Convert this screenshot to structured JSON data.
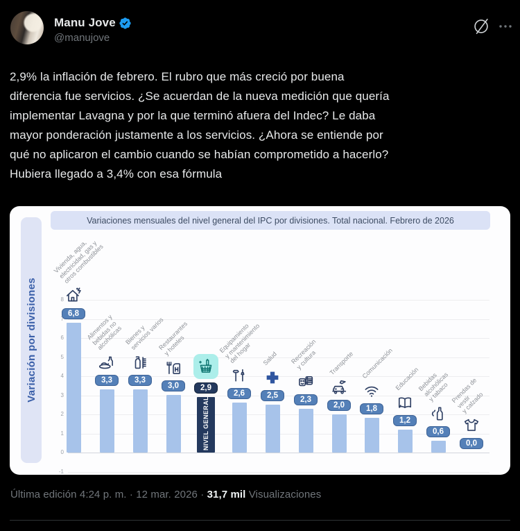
{
  "header": {
    "display_name": "Manu Jove",
    "handle": "@manujove",
    "verified_icon": "verified-badge-icon",
    "grok_icon": "grok-slash-icon",
    "more_icon": "more-dots-icon"
  },
  "tweet": {
    "text": "2,9% la inflación de febrero. El rubro que más creció por buena\ndiferencia fue servicios. ¿Se acuerdan de la nueva medición que quería\nimplementar Lavagna y por la que terminó afuera del Indec? Le daba\nmayor ponderación justamente a los servicios. ¿Ahora se entiende por\nqué no aplicaron el cambio cuando se habían comprometido a hacerlo?\nHubiera llegado a 3,4% con esa fórmula"
  },
  "chart_data": {
    "type": "bar",
    "title": "Variaciones mensuales del nivel general del IPC por divisiones. Total nacional. Febrero de 2026",
    "ylabel": "Variación por divisiones",
    "xlabel": "",
    "ylim": [
      -1,
      8
    ],
    "yticks": [
      8,
      7,
      6,
      5,
      4,
      3,
      2,
      1,
      0,
      -1
    ],
    "grid": true,
    "highlight_category": "Nivel general",
    "categories": [
      {
        "label": "Vivienda, agua, electricidad, gas y otros combustibles",
        "lines": "Vivienda, agua,\nelectricidad, gas y\notros combustibles",
        "value": 6.8,
        "display": "6,8",
        "icon": "house-energy-icon"
      },
      {
        "label": "Alimentos y bebidas no alcohólicas",
        "lines": "Alimentos y\nbebidas no\nalcohólicas",
        "value": 3.3,
        "display": "3,3",
        "icon": "food-icon"
      },
      {
        "label": "Bienes y servicios varios",
        "lines": "Bienes y\nservicios varios",
        "value": 3.3,
        "display": "3,3",
        "icon": "toiletries-icon"
      },
      {
        "label": "Restaurantes y hoteles",
        "lines": "Restaurantes\ny hoteles",
        "value": 3.0,
        "display": "3,0",
        "icon": "restaurant-hotel-icon"
      },
      {
        "label": "Nivel general",
        "lines": "",
        "value": 2.9,
        "display": "2,9",
        "icon": "shopping-basket-icon",
        "highlight": true,
        "bar_text": "NIVEL GENERAL"
      },
      {
        "label": "Equipamiento y mantenimiento del hogar",
        "lines": "Equipamiento\ny mantenimiento\ndel hogar",
        "value": 2.6,
        "display": "2,6",
        "icon": "tools-icon"
      },
      {
        "label": "Salud",
        "lines": "Salud",
        "value": 2.5,
        "display": "2,5",
        "icon": "health-cross-icon"
      },
      {
        "label": "Recreación y cultura",
        "lines": "Recreación\ny cultura",
        "value": 2.3,
        "display": "2,3",
        "icon": "culture-masks-icon"
      },
      {
        "label": "Transporte",
        "lines": "Transporte",
        "value": 2.0,
        "display": "2,0",
        "icon": "transport-icon"
      },
      {
        "label": "Comunicación",
        "lines": "Comunicación",
        "value": 1.8,
        "display": "1,8",
        "icon": "wifi-icon"
      },
      {
        "label": "Educación",
        "lines": "Educación",
        "value": 1.2,
        "display": "1,2",
        "icon": "book-icon"
      },
      {
        "label": "Bebidas alcohólicas y tabaco",
        "lines": "Bebidas\nalcohólicas\ny tabaco",
        "value": 0.6,
        "display": "0,6",
        "icon": "alcohol-bottle-icon"
      },
      {
        "label": "Prendas de vestir y calzado",
        "lines": "Prendas de vestir\ny calzado",
        "value": 0.0,
        "display": "0,0",
        "icon": "tshirt-icon"
      }
    ]
  },
  "footer": {
    "meta_prefix": "Última edición 4:24 p. m. · 12 mar. 2026 · ",
    "views_count": "31,7 mil",
    "views_label": " Visualizaciones"
  },
  "colors": {
    "accent_blue": "#1d9bf0",
    "bar": "#a7c3ea",
    "bar_highlight": "#24395e",
    "badge_bg": "#5480b8",
    "highlight_icon_bg": "#aceeea",
    "highlight_icon_stroke": "#0d7470",
    "icon_stroke": "#2e3f63",
    "title_pill_bg": "#dbe2f6",
    "strip_text": "#3a5fa9",
    "page_bg": "#000000",
    "text_primary": "#e7e9ea",
    "text_secondary": "#71767b"
  }
}
